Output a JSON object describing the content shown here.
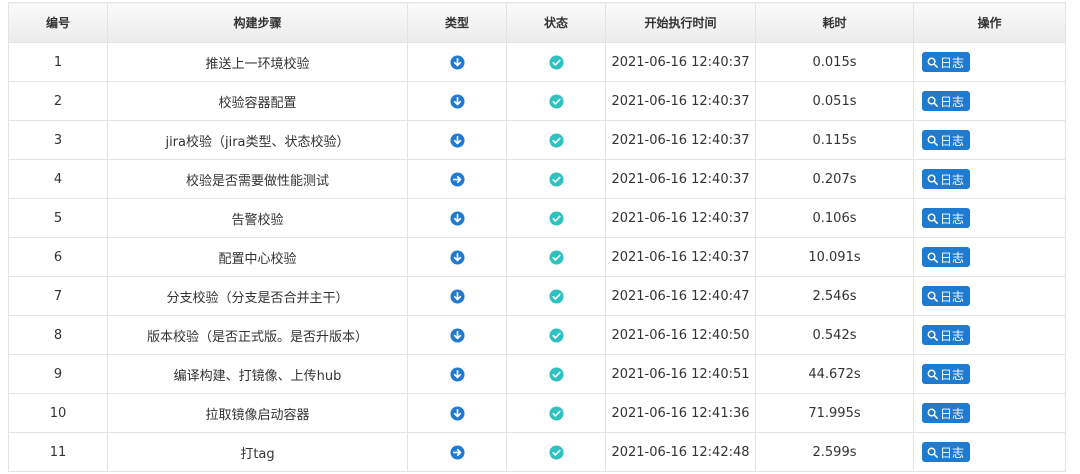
{
  "table": {
    "headers": [
      "编号",
      "构建步骤",
      "类型",
      "状态",
      "开始执行时间",
      "耗时",
      "操作"
    ],
    "log_button_label": "日志",
    "rows": [
      {
        "no": "1",
        "step": "推送上一环境校验",
        "type": "down-icon",
        "status": "check-icon",
        "start": "2021-06-16 12:40:37",
        "duration": "0.015s"
      },
      {
        "no": "2",
        "step": "校验容器配置",
        "type": "down-icon",
        "status": "check-icon",
        "start": "2021-06-16 12:40:37",
        "duration": "0.051s"
      },
      {
        "no": "3",
        "step": "jira校验（jira类型、状态校验）",
        "type": "down-icon",
        "status": "check-icon",
        "start": "2021-06-16 12:40:37",
        "duration": "0.115s"
      },
      {
        "no": "4",
        "step": "校验是否需要做性能测试",
        "type": "right-icon",
        "status": "check-icon",
        "start": "2021-06-16 12:40:37",
        "duration": "0.207s"
      },
      {
        "no": "5",
        "step": "告警校验",
        "type": "down-icon",
        "status": "check-icon",
        "start": "2021-06-16 12:40:37",
        "duration": "0.106s"
      },
      {
        "no": "6",
        "step": "配置中心校验",
        "type": "down-icon",
        "status": "check-icon",
        "start": "2021-06-16 12:40:37",
        "duration": "10.091s"
      },
      {
        "no": "7",
        "step": "分支校验（分支是否合并主干）",
        "type": "down-icon",
        "status": "check-icon",
        "start": "2021-06-16 12:40:47",
        "duration": "2.546s"
      },
      {
        "no": "8",
        "step": "版本校验（是否正式版。是否升版本）",
        "type": "down-icon",
        "status": "check-icon",
        "start": "2021-06-16 12:40:50",
        "duration": "0.542s"
      },
      {
        "no": "9",
        "step": "编译构建、打镜像、上传hub",
        "type": "down-icon",
        "status": "check-icon",
        "start": "2021-06-16 12:40:51",
        "duration": "44.672s"
      },
      {
        "no": "10",
        "step": "拉取镜像启动容器",
        "type": "down-icon",
        "status": "check-icon",
        "start": "2021-06-16 12:41:36",
        "duration": "71.995s"
      },
      {
        "no": "11",
        "step": "打tag",
        "type": "right-icon",
        "status": "check-icon",
        "start": "2021-06-16 12:42:48",
        "duration": "2.599s"
      }
    ]
  },
  "colors": {
    "type_icon": "#1f7bd0",
    "status_icon": "#2fc0c0",
    "button": "#1f7bd0"
  }
}
